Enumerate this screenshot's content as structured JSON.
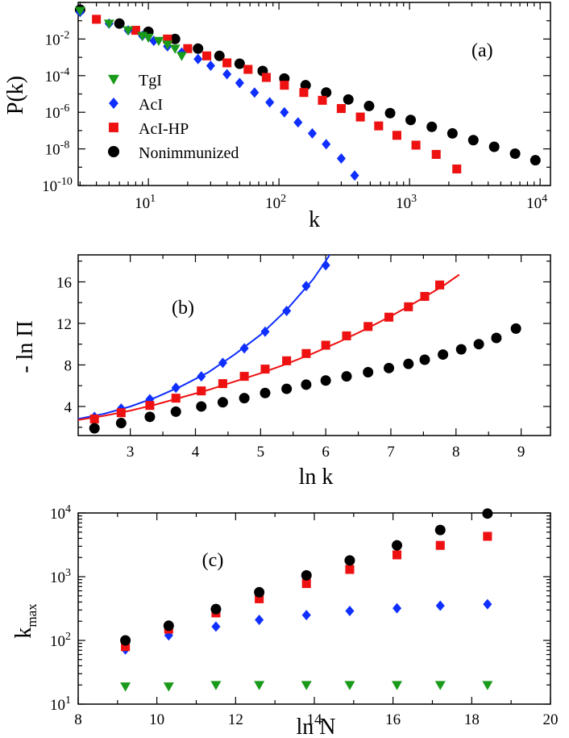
{
  "chart_data": [
    {
      "type": "scatter",
      "panel_label": "(a)",
      "xlabel": "k",
      "ylabel": "P(k)",
      "xscale": "log",
      "yscale": "log",
      "xlim": [
        2.9,
        12000
      ],
      "ylim": [
        1e-10,
        1
      ],
      "xticks": [
        {
          "value": 10,
          "base": "10",
          "exp": "1"
        },
        {
          "value": 100,
          "base": "10",
          "exp": "2"
        },
        {
          "value": 1000,
          "base": "10",
          "exp": "3"
        },
        {
          "value": 10000,
          "base": "10",
          "exp": "4"
        }
      ],
      "yticks": [
        {
          "value": 1e-10,
          "base": "10",
          "exp": "-10"
        },
        {
          "value": 1e-08,
          "base": "10",
          "exp": "-8"
        },
        {
          "value": 1e-06,
          "base": "10",
          "exp": "-6"
        },
        {
          "value": 0.0001,
          "base": "10",
          "exp": "-4"
        },
        {
          "value": 0.01,
          "base": "10",
          "exp": "-2"
        }
      ],
      "legend_position": "left",
      "series": [
        {
          "name": "TgI",
          "marker": "triangle-down",
          "color": "#1a9a1a",
          "x": [
            3,
            5,
            7,
            9,
            10,
            12,
            14,
            16,
            18
          ],
          "y": [
            0.35,
            0.07,
            0.03,
            0.015,
            0.012,
            0.008,
            0.005,
            0.003,
            0.0012
          ]
        },
        {
          "name": "AcI",
          "marker": "diamond",
          "color": "#0f2fff",
          "x": [
            3,
            5,
            7,
            9,
            11,
            14,
            18,
            24,
            30,
            40,
            50,
            65,
            85,
            110,
            140,
            180,
            230,
            300,
            380
          ],
          "y": [
            0.3,
            0.07,
            0.03,
            0.015,
            0.008,
            0.004,
            0.0018,
            0.0008,
            0.00035,
            0.00012,
            4e-05,
            1.2e-05,
            3.5e-06,
            1e-06,
            2.8e-07,
            7e-08,
            1.8e-08,
            3e-09,
            3.5e-10
          ]
        },
        {
          "name": "AcI-HP",
          "marker": "square",
          "color": "#ee1111",
          "x": [
            4,
            8,
            14,
            20,
            28,
            40,
            58,
            80,
            110,
            155,
            215,
            300,
            420,
            580,
            800,
            1120,
            1600,
            2300
          ],
          "y": [
            0.12,
            0.03,
            0.01,
            0.003,
            0.0012,
            0.0005,
            0.00022,
            8e-05,
            3e-05,
            1.2e-05,
            4.5e-06,
            1.6e-06,
            5.5e-07,
            1.8e-07,
            5.5e-08,
            1.6e-08,
            5e-09,
            8e-10
          ]
        },
        {
          "name": "Nonimmunized",
          "marker": "circle",
          "color": "#000000",
          "x": [
            3,
            6,
            10,
            16,
            24,
            35,
            50,
            75,
            110,
            160,
            230,
            340,
            490,
            710,
            1020,
            1480,
            2130,
            3080,
            4450,
            6430,
            9200
          ],
          "y": [
            0.4,
            0.07,
            0.025,
            0.01,
            0.003,
            0.0012,
            0.00045,
            0.00018,
            7e-05,
            3e-05,
            1.2e-05,
            5e-06,
            2.2e-06,
            9e-07,
            3.8e-07,
            1.6e-07,
            7e-08,
            3e-08,
            1.3e-08,
            5.5e-09,
            2.4e-09
          ]
        }
      ]
    },
    {
      "type": "scatter",
      "panel_label": "(b)",
      "xlabel": "ln k",
      "ylabel": "- ln Π",
      "xlim": [
        2.2,
        9.45
      ],
      "ylim": [
        1.2,
        18.6
      ],
      "xticks": [
        3,
        4,
        5,
        6,
        7,
        8,
        9
      ],
      "yticks": [
        4,
        8,
        12,
        16
      ],
      "series": [
        {
          "name": "AcI",
          "marker": "diamond",
          "color": "#0f2fff",
          "x": [
            2.45,
            2.86,
            3.3,
            3.7,
            4.09,
            4.42,
            4.75,
            5.07,
            5.4,
            5.7,
            6.0
          ],
          "y": [
            3.0,
            3.8,
            4.7,
            5.8,
            6.9,
            8.2,
            9.6,
            11.2,
            13.2,
            15.6,
            17.6
          ],
          "fit": {
            "x": [
              2.2,
              2.6,
              3.0,
              3.4,
              3.8,
              4.2,
              4.6,
              5.0,
              5.4,
              5.8,
              6.0,
              6.1
            ],
            "y": [
              2.8,
              3.3,
              4.0,
              4.9,
              6.0,
              7.3,
              9.0,
              10.9,
              13.3,
              16.2,
              18.0,
              19.0
            ]
          }
        },
        {
          "name": "AcI-HP",
          "marker": "square",
          "color": "#ee1111",
          "x": [
            2.45,
            2.86,
            3.3,
            3.7,
            4.09,
            4.42,
            4.75,
            5.07,
            5.4,
            5.7,
            6.0,
            6.32,
            6.65,
            6.97,
            7.27,
            7.52,
            7.75
          ],
          "y": [
            2.8,
            3.4,
            4.1,
            4.8,
            5.5,
            6.2,
            6.9,
            7.6,
            8.4,
            9.1,
            9.9,
            10.8,
            11.7,
            12.6,
            13.6,
            14.6,
            15.7
          ],
          "fit": {
            "x": [
              2.2,
              2.6,
              3.0,
              3.4,
              3.8,
              4.2,
              4.6,
              5.0,
              5.4,
              5.8,
              6.2,
              6.6,
              7.0,
              7.4,
              7.8,
              8.05
            ],
            "y": [
              2.7,
              3.1,
              3.6,
              4.2,
              4.9,
              5.6,
              6.4,
              7.2,
              8.1,
              9.1,
              10.2,
              11.4,
              12.7,
              14.1,
              15.6,
              16.7
            ]
          }
        },
        {
          "name": "Nonimmunized",
          "marker": "circle",
          "color": "#000000",
          "x": [
            2.45,
            2.86,
            3.3,
            3.7,
            4.09,
            4.42,
            4.75,
            5.07,
            5.4,
            5.7,
            6.0,
            6.32,
            6.65,
            6.97,
            7.27,
            7.52,
            7.8,
            8.08,
            8.35,
            8.62,
            8.92
          ],
          "y": [
            1.9,
            2.4,
            3.0,
            3.5,
            4.0,
            4.4,
            4.8,
            5.3,
            5.7,
            6.1,
            6.5,
            6.9,
            7.3,
            7.7,
            8.1,
            8.5,
            9.0,
            9.5,
            10.0,
            10.6,
            11.5
          ]
        }
      ]
    },
    {
      "type": "scatter",
      "panel_label": "(c)",
      "xlabel": "ln N",
      "ylabel_main": "k",
      "ylabel_sub": "max",
      "yscale": "log",
      "xlim": [
        8,
        20
      ],
      "ylim": [
        10,
        10000
      ],
      "xticks": [
        8,
        10,
        12,
        14,
        16,
        18,
        20
      ],
      "yticks": [
        {
          "value": 10,
          "base": "10",
          "exp": "1"
        },
        {
          "value": 100,
          "base": "10",
          "exp": "2"
        },
        {
          "value": 1000,
          "base": "10",
          "exp": "3"
        },
        {
          "value": 10000,
          "base": "10",
          "exp": "4"
        }
      ],
      "series": [
        {
          "name": "TgI",
          "marker": "triangle-down",
          "color": "#1a9a1a",
          "x": [
            9.2,
            10.3,
            11.5,
            12.6,
            13.8,
            14.9,
            16.1,
            17.2,
            18.4
          ],
          "y": [
            19,
            19,
            20,
            20,
            20,
            20,
            20,
            20,
            20
          ]
        },
        {
          "name": "AcI",
          "marker": "diamond",
          "color": "#0f2fff",
          "x": [
            9.2,
            10.3,
            11.5,
            12.6,
            13.8,
            14.9,
            16.1,
            17.2,
            18.4
          ],
          "y": [
            72,
            120,
            165,
            210,
            250,
            290,
            320,
            350,
            370
          ]
        },
        {
          "name": "AcI-HP",
          "marker": "square",
          "color": "#ee1111",
          "x": [
            9.2,
            10.3,
            11.5,
            12.6,
            13.8,
            14.9,
            16.1,
            17.2,
            18.4
          ],
          "y": [
            80,
            150,
            270,
            450,
            780,
            1300,
            2200,
            3100,
            4300
          ]
        },
        {
          "name": "Nonimmunized",
          "marker": "circle",
          "color": "#000000",
          "x": [
            9.2,
            10.3,
            11.5,
            12.6,
            13.8,
            14.9,
            16.1,
            17.2,
            18.4
          ],
          "y": [
            100,
            170,
            310,
            570,
            1050,
            1800,
            3100,
            5400,
            9800
          ]
        }
      ]
    }
  ]
}
